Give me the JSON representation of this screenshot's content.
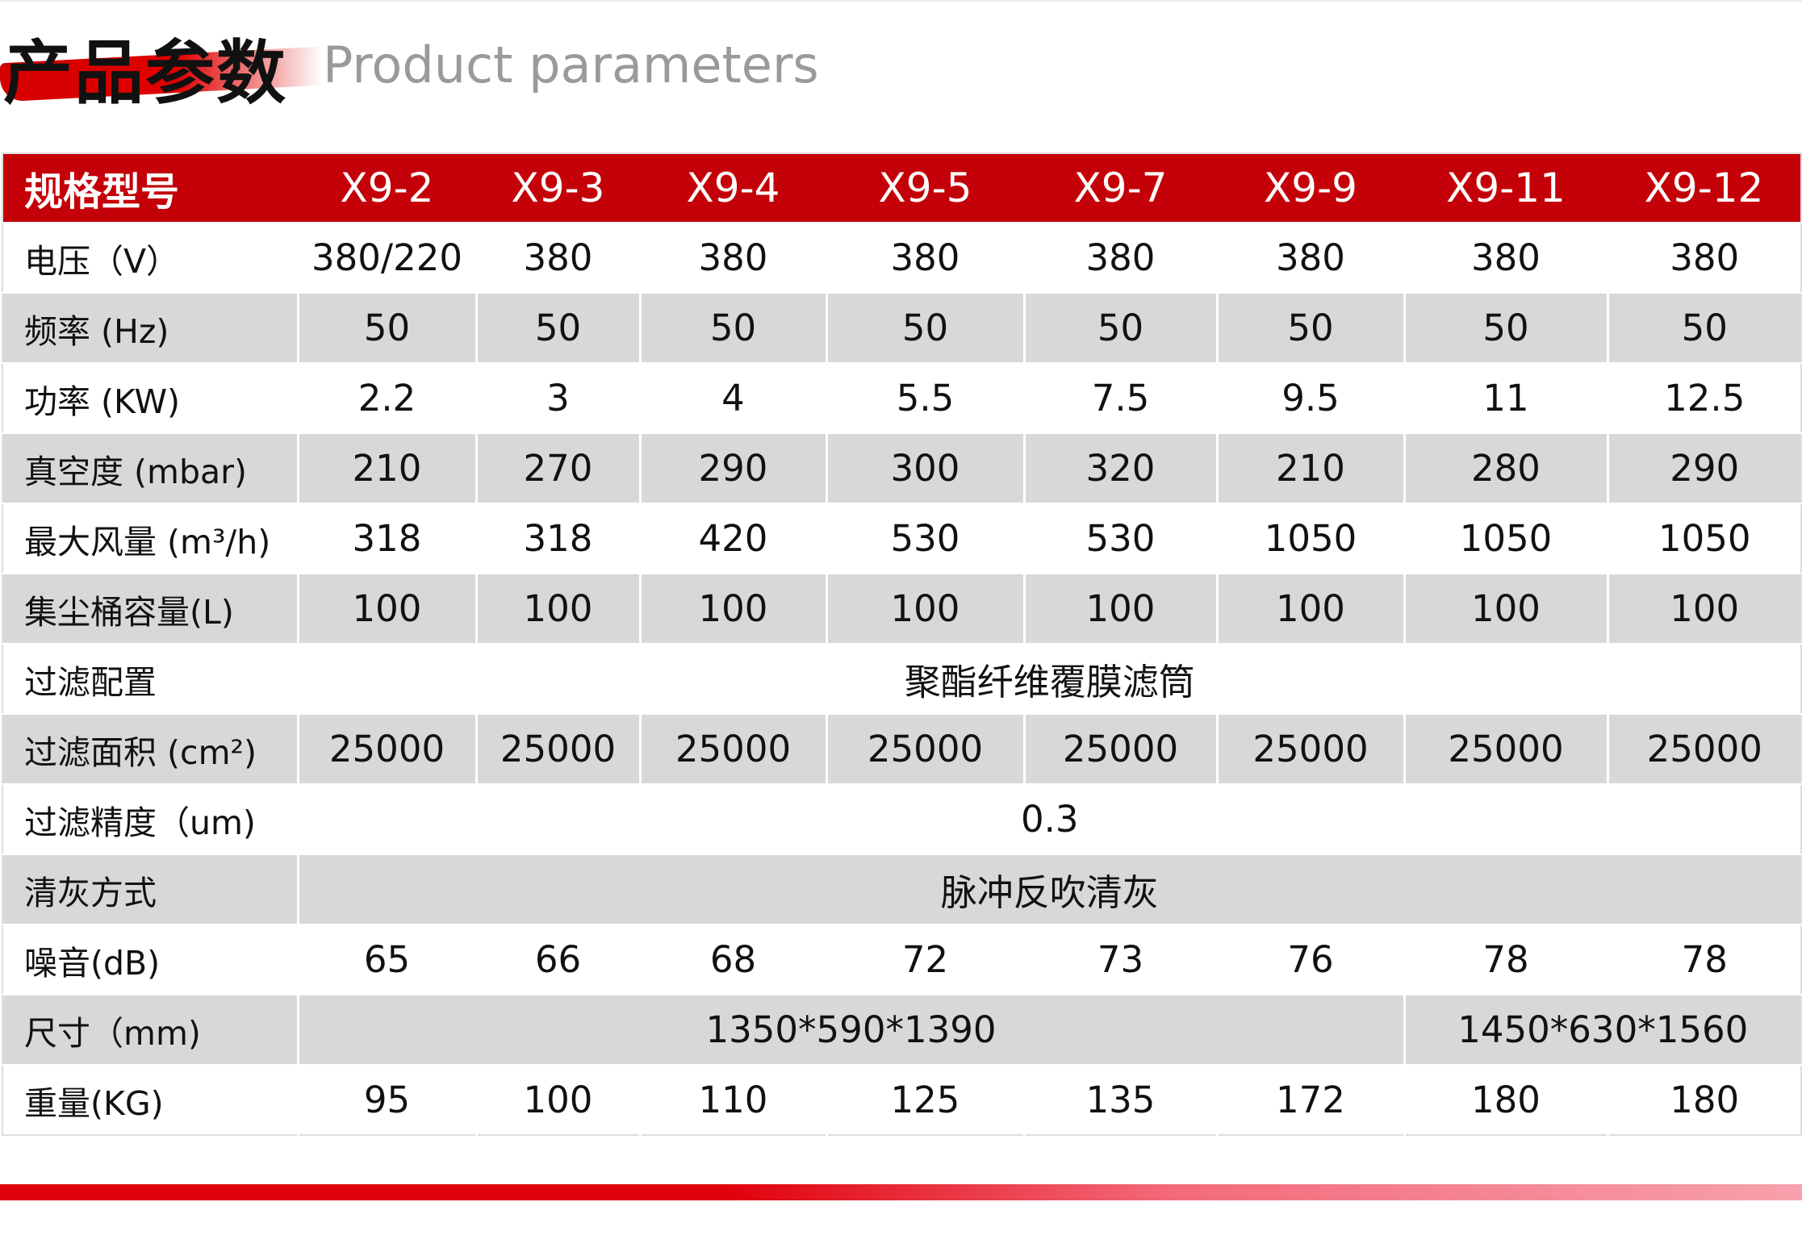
{
  "header": {
    "title": "产品参数",
    "subtitle": "Product parameters"
  },
  "table": {
    "columns": [
      "规格型号",
      "X9-2",
      "X9-3",
      "X9-4",
      "X9-5",
      "X9-7",
      "X9-9",
      "X9-11",
      "X9-12"
    ],
    "rows": [
      {
        "label": "电压（V）",
        "cells": [
          "380/220",
          380,
          380,
          380,
          380,
          380,
          380,
          380
        ]
      },
      {
        "label": "频率 (Hz)",
        "cells": [
          50,
          50,
          50,
          50,
          50,
          50,
          50,
          50
        ]
      },
      {
        "label": "功率 (KW)",
        "cells": [
          2.2,
          3,
          4,
          5.5,
          7.5,
          9.5,
          11,
          12.5
        ]
      },
      {
        "label": "真空度 (mbar)",
        "cells": [
          210,
          270,
          290,
          300,
          320,
          210,
          280,
          290
        ]
      },
      {
        "label": "最大风量 (m³/h)",
        "cells": [
          318,
          318,
          420,
          530,
          530,
          1050,
          1050,
          1050
        ]
      },
      {
        "label": "集尘桶容量(L)",
        "cells": [
          100,
          100,
          100,
          100,
          100,
          100,
          100,
          100
        ]
      },
      {
        "label": "过滤配置",
        "cells": [
          "聚酯纤维覆膜滤筒"
        ]
      },
      {
        "label": "过滤面积 (cm²)",
        "cells": [
          25000,
          25000,
          25000,
          25000,
          25000,
          25000,
          25000,
          25000
        ]
      },
      {
        "label": "过滤精度（um)",
        "cells": [
          0.3
        ]
      },
      {
        "label": "清灰方式",
        "cells": [
          "脉冲反吹清灰"
        ]
      },
      {
        "label": "噪音(dB)",
        "cells": [
          65,
          66,
          68,
          72,
          73,
          76,
          78,
          78
        ]
      },
      {
        "label": "尺寸（mm)",
        "cells": [
          "1350*590*1390",
          "1450*630*1560"
        ]
      },
      {
        "label": "重量(KG)",
        "cells": [
          95,
          100,
          110,
          125,
          135,
          172,
          180,
          180
        ]
      }
    ]
  }
}
